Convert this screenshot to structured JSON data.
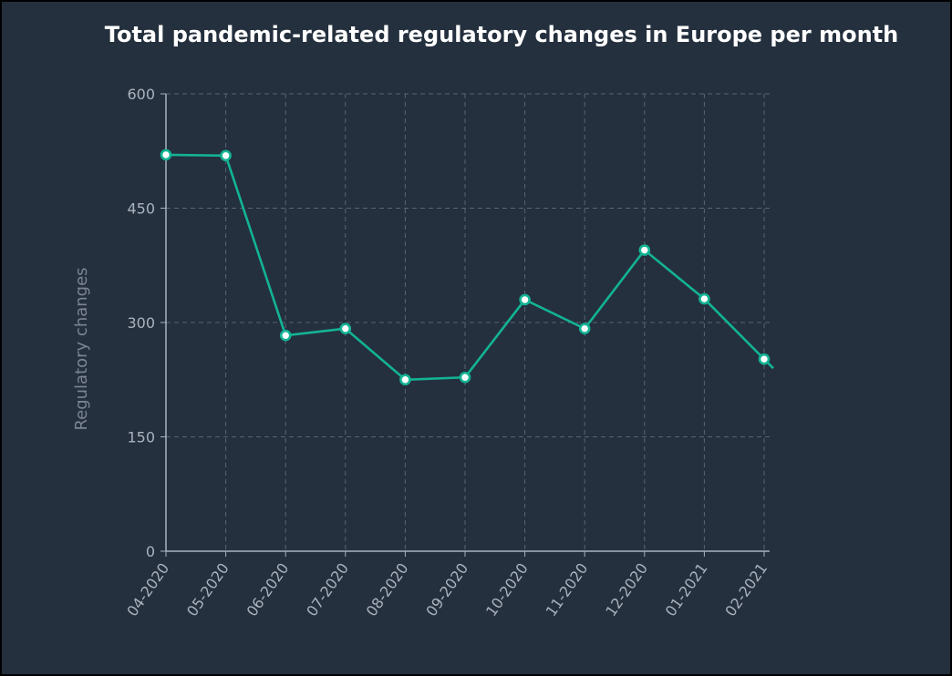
{
  "chart_data": {
    "type": "line",
    "title": "Total pandemic-related regulatory changes in Europe per month",
    "xlabel": "",
    "ylabel": "Regulatory changes",
    "categories": [
      "04-2020",
      "05-2020",
      "06-2020",
      "07-2020",
      "08-2020",
      "09-2020",
      "10-2020",
      "11-2020",
      "12-2020",
      "01-2021",
      "02-2021"
    ],
    "series": [
      {
        "values": [
          520,
          519,
          283,
          292,
          225,
          228,
          330,
          292,
          395,
          331,
          252
        ]
      }
    ],
    "ylim": [
      0,
      600
    ],
    "yticks": [
      0,
      150,
      300,
      450,
      600
    ],
    "grid": true,
    "colors": {
      "line": "#13b394",
      "grid": "#5a6473",
      "axis": "#aab2bd",
      "background": "#24303e"
    }
  }
}
